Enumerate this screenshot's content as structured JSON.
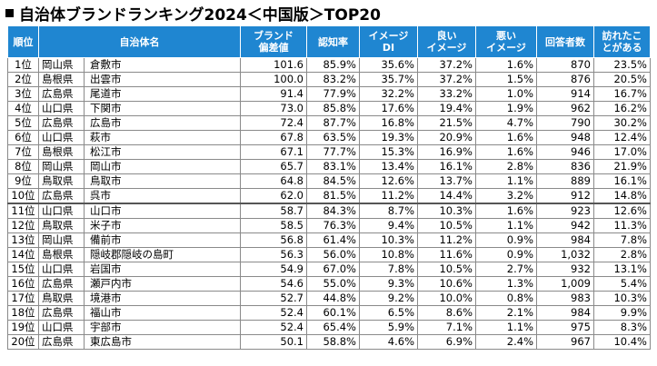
{
  "title": "自治体ブランドランキング2024＜中国版＞TOP20",
  "headers": {
    "rank": "順位",
    "name": "自治体名",
    "brand": "ブランド\n偏差値",
    "awareness": "認知率",
    "image_di": "イメージ\nDI",
    "good_image": "良い\nイメージ",
    "bad_image": "悪い\nイメージ",
    "respondents": "回答者数",
    "visited": "訪れたこ\nとがある"
  },
  "rows": [
    {
      "rank": "1位",
      "pref": "岡山県",
      "city": "倉敷市",
      "brand": "101.6",
      "aware": "85.9%",
      "di": "35.6%",
      "good": "37.2%",
      "bad": "1.6%",
      "resp": "870",
      "visit": "23.5%"
    },
    {
      "rank": "2位",
      "pref": "島根県",
      "city": "出雲市",
      "brand": "100.0",
      "aware": "83.2%",
      "di": "35.7%",
      "good": "37.2%",
      "bad": "1.5%",
      "resp": "876",
      "visit": "20.5%"
    },
    {
      "rank": "3位",
      "pref": "広島県",
      "city": "尾道市",
      "brand": "91.4",
      "aware": "77.9%",
      "di": "32.2%",
      "good": "33.2%",
      "bad": "1.0%",
      "resp": "914",
      "visit": "16.7%"
    },
    {
      "rank": "4位",
      "pref": "山口県",
      "city": "下関市",
      "brand": "73.0",
      "aware": "85.8%",
      "di": "17.6%",
      "good": "19.4%",
      "bad": "1.9%",
      "resp": "962",
      "visit": "16.2%"
    },
    {
      "rank": "5位",
      "pref": "広島県",
      "city": "広島市",
      "brand": "72.4",
      "aware": "87.7%",
      "di": "16.8%",
      "good": "21.5%",
      "bad": "4.7%",
      "resp": "790",
      "visit": "30.2%"
    },
    {
      "rank": "6位",
      "pref": "山口県",
      "city": "萩市",
      "brand": "67.8",
      "aware": "63.5%",
      "di": "19.3%",
      "good": "20.9%",
      "bad": "1.6%",
      "resp": "948",
      "visit": "12.4%"
    },
    {
      "rank": "7位",
      "pref": "島根県",
      "city": "松江市",
      "brand": "67.1",
      "aware": "77.7%",
      "di": "15.3%",
      "good": "16.9%",
      "bad": "1.6%",
      "resp": "946",
      "visit": "17.0%"
    },
    {
      "rank": "8位",
      "pref": "岡山県",
      "city": "岡山市",
      "brand": "65.7",
      "aware": "83.1%",
      "di": "13.4%",
      "good": "16.1%",
      "bad": "2.8%",
      "resp": "836",
      "visit": "21.9%"
    },
    {
      "rank": "9位",
      "pref": "鳥取県",
      "city": "鳥取市",
      "brand": "64.8",
      "aware": "84.5%",
      "di": "12.6%",
      "good": "13.7%",
      "bad": "1.1%",
      "resp": "889",
      "visit": "16.1%"
    },
    {
      "rank": "10位",
      "pref": "広島県",
      "city": "呉市",
      "brand": "62.0",
      "aware": "81.5%",
      "di": "11.2%",
      "good": "14.4%",
      "bad": "3.2%",
      "resp": "912",
      "visit": "14.8%"
    },
    {
      "rank": "11位",
      "pref": "山口県",
      "city": "山口市",
      "brand": "58.7",
      "aware": "84.3%",
      "di": "8.7%",
      "good": "10.3%",
      "bad": "1.6%",
      "resp": "923",
      "visit": "12.6%"
    },
    {
      "rank": "12位",
      "pref": "鳥取県",
      "city": "米子市",
      "brand": "58.5",
      "aware": "76.3%",
      "di": "9.4%",
      "good": "10.5%",
      "bad": "1.1%",
      "resp": "942",
      "visit": "11.3%"
    },
    {
      "rank": "13位",
      "pref": "岡山県",
      "city": "備前市",
      "brand": "56.8",
      "aware": "61.4%",
      "di": "10.3%",
      "good": "11.2%",
      "bad": "0.9%",
      "resp": "984",
      "visit": "7.8%"
    },
    {
      "rank": "14位",
      "pref": "島根県",
      "city": "隠岐郡隠岐の島町",
      "brand": "56.3",
      "aware": "56.0%",
      "di": "10.8%",
      "good": "11.6%",
      "bad": "0.9%",
      "resp": "1,032",
      "visit": "2.8%"
    },
    {
      "rank": "15位",
      "pref": "山口県",
      "city": "岩国市",
      "brand": "54.9",
      "aware": "67.0%",
      "di": "7.8%",
      "good": "10.5%",
      "bad": "2.7%",
      "resp": "932",
      "visit": "13.1%"
    },
    {
      "rank": "16位",
      "pref": "広島県",
      "city": "瀬戸内市",
      "brand": "54.6",
      "aware": "55.0%",
      "di": "9.3%",
      "good": "10.6%",
      "bad": "1.3%",
      "resp": "1,009",
      "visit": "5.4%"
    },
    {
      "rank": "17位",
      "pref": "鳥取県",
      "city": "境港市",
      "brand": "52.7",
      "aware": "44.8%",
      "di": "9.2%",
      "good": "10.0%",
      "bad": "0.8%",
      "resp": "983",
      "visit": "10.3%"
    },
    {
      "rank": "18位",
      "pref": "広島県",
      "city": "福山市",
      "brand": "52.4",
      "aware": "60.1%",
      "di": "6.5%",
      "good": "8.6%",
      "bad": "2.1%",
      "resp": "984",
      "visit": "9.9%"
    },
    {
      "rank": "19位",
      "pref": "山口県",
      "city": "宇部市",
      "brand": "52.4",
      "aware": "65.4%",
      "di": "5.9%",
      "good": "7.1%",
      "bad": "1.1%",
      "resp": "975",
      "visit": "8.3%"
    },
    {
      "rank": "20位",
      "pref": "広島県",
      "city": "東広島市",
      "brand": "50.1",
      "aware": "58.8%",
      "di": "4.6%",
      "good": "6.9%",
      "bad": "2.4%",
      "resp": "967",
      "visit": "10.4%"
    }
  ],
  "colors": {
    "header_bg": "#1f86d1",
    "header_text": "#ffffff"
  }
}
